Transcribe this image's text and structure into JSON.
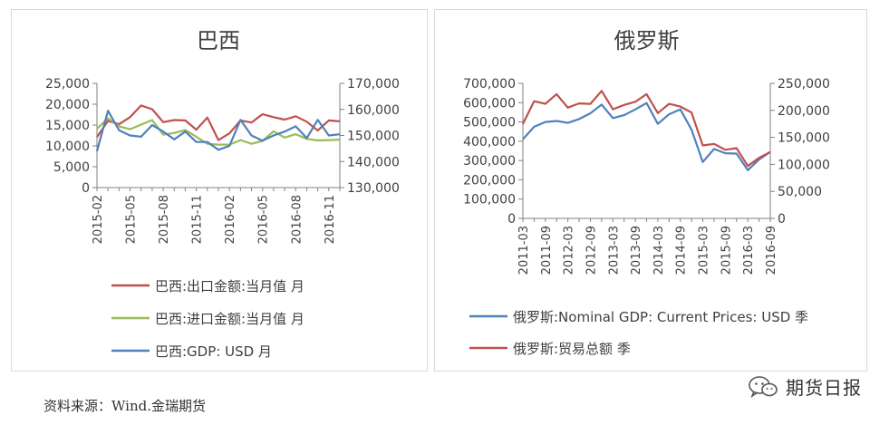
{
  "chart_data": [
    {
      "type": "line",
      "title": "巴西",
      "x": [
        "2015-02",
        "2015-03",
        "2015-04",
        "2015-05",
        "2015-06",
        "2015-07",
        "2015-08",
        "2015-09",
        "2015-10",
        "2015-11",
        "2015-12",
        "2016-01",
        "2016-02",
        "2016-03",
        "2016-04",
        "2016-05",
        "2016-06",
        "2016-07",
        "2016-08",
        "2016-09",
        "2016-10",
        "2016-11",
        "2016-12"
      ],
      "x_tick_labels": [
        "2015-02",
        "2015-05",
        "2015-08",
        "2015-11",
        "2016-02",
        "2016-05",
        "2016-08",
        "2016-11"
      ],
      "y_left": {
        "lim": [
          0,
          25000
        ],
        "ticks": [
          "0",
          "5,000",
          "10,000",
          "15,000",
          "20,000",
          "25,000"
        ]
      },
      "y_right": {
        "lim": [
          130000,
          170000
        ],
        "ticks": [
          "130,000",
          "140,000",
          "150,000",
          "160,000",
          "170,000"
        ]
      },
      "series": [
        {
          "name": "巴西:出口金额:当月值 月",
          "axis": "left",
          "color": "#c0504d",
          "values": [
            12100,
            16000,
            15200,
            16900,
            19700,
            18800,
            15700,
            16200,
            16100,
            13900,
            16800,
            11400,
            13000,
            16100,
            15600,
            17600,
            16900,
            16300,
            17100,
            15800,
            13700,
            16100,
            15900
          ]
        },
        {
          "name": "巴西:进口金额:当月值 月",
          "axis": "left",
          "color": "#9bbb59",
          "values": [
            14100,
            16600,
            14700,
            14000,
            15100,
            16200,
            12700,
            13100,
            13800,
            12200,
            10500,
            10300,
            10300,
            11400,
            10500,
            11200,
            13500,
            12000,
            12800,
            11700,
            11300,
            11400,
            11500
          ]
        },
        {
          "name": "巴西:GDP: USD 月",
          "axis": "right",
          "color": "#4f81bd",
          "values": [
            144000,
            159500,
            152000,
            150000,
            149500,
            154000,
            151500,
            148500,
            151500,
            147500,
            147500,
            144500,
            146000,
            156000,
            150000,
            148000,
            150000,
            151500,
            153500,
            149000,
            156000,
            150000,
            150500
          ]
        }
      ]
    },
    {
      "type": "line",
      "title": "俄罗斯",
      "x": [
        "2011-03",
        "2011-06",
        "2011-09",
        "2011-12",
        "2012-03",
        "2012-06",
        "2012-09",
        "2012-12",
        "2013-03",
        "2013-06",
        "2013-09",
        "2013-12",
        "2014-03",
        "2014-06",
        "2014-09",
        "2014-12",
        "2015-03",
        "2015-06",
        "2015-09",
        "2015-12",
        "2016-03",
        "2016-06",
        "2016-09"
      ],
      "x_tick_labels": [
        "2011-03",
        "2011-09",
        "2012-03",
        "2012-09",
        "2013-03",
        "2013-09",
        "2014-03",
        "2014-09",
        "2015-03",
        "2015-09",
        "2016-03",
        "2016-09"
      ],
      "y_left": {
        "lim": [
          0,
          700000
        ],
        "ticks": [
          "0",
          "100,000",
          "200,000",
          "300,000",
          "400,000",
          "500,000",
          "600,000",
          "700,000"
        ]
      },
      "y_right": {
        "lim": [
          0,
          250000
        ],
        "ticks": [
          "0",
          "50,000",
          "100,000",
          "150,000",
          "200,000",
          "250,000"
        ]
      },
      "series": [
        {
          "name": "俄罗斯:Nominal GDP: Current Prices: USD 季",
          "axis": "left",
          "color": "#4f81bd",
          "values": [
            410000,
            475000,
            500000,
            505000,
            495000,
            515000,
            545000,
            590000,
            520000,
            535000,
            565000,
            598000,
            490000,
            540000,
            565000,
            460000,
            292000,
            360000,
            338000,
            336000,
            250000,
            305000,
            345000
          ]
        },
        {
          "name": "俄罗斯:贸易总额 季",
          "axis": "right",
          "color": "#c0504d",
          "values": [
            175000,
            217000,
            212000,
            230000,
            205000,
            213000,
            212000,
            236000,
            202000,
            210000,
            216000,
            230000,
            195000,
            212000,
            207000,
            196000,
            135000,
            138000,
            127000,
            130000,
            97000,
            112000,
            123000
          ]
        }
      ]
    }
  ],
  "footer": {
    "source": "资料来源：Wind.金瑞期货",
    "brand": "期货日报"
  }
}
